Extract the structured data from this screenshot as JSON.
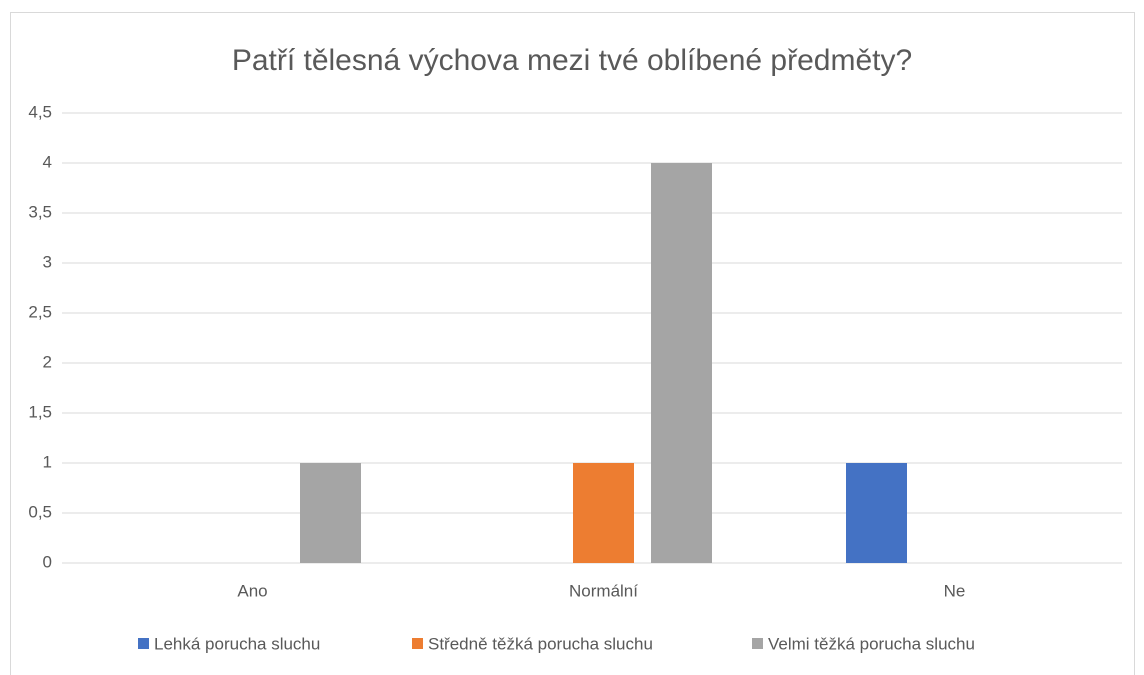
{
  "chart_data": {
    "type": "bar",
    "title": "Patří tělesná výchova mezi tvé oblíbené předměty?",
    "categories": [
      "Ano",
      "Normální",
      "Ne"
    ],
    "series": [
      {
        "name": "Lehká porucha sluchu",
        "color": "#4472c4",
        "values": [
          0,
          0,
          1
        ]
      },
      {
        "name": "Středně těžká porucha sluchu",
        "color": "#ed7d31",
        "values": [
          0,
          1,
          0
        ]
      },
      {
        "name": "Velmi těžká porucha sluchu",
        "color": "#a5a5a5",
        "values": [
          1,
          4,
          0
        ]
      }
    ],
    "ylim": [
      0,
      4.5
    ],
    "yticks": [
      0,
      {
        "value": 0.5,
        "label": "0,5"
      },
      1,
      {
        "value": 1.5,
        "label": "1,5"
      },
      2,
      {
        "value": 2.5,
        "label": "2,5"
      },
      3,
      {
        "value": 3.5,
        "label": "3,5"
      },
      4,
      {
        "value": 4.5,
        "label": "4,5"
      }
    ],
    "grid": true,
    "legend": "bottom"
  }
}
